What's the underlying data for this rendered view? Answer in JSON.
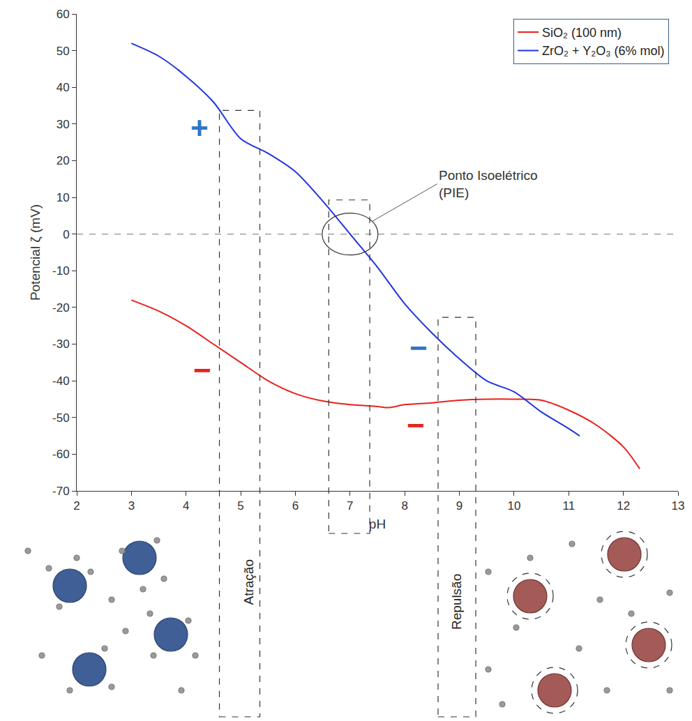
{
  "chart_data": {
    "type": "line",
    "x_label": "pH",
    "y_label": "Potencial ζ (mV)",
    "xlim": [
      2,
      13
    ],
    "xticks": [
      2,
      3,
      4,
      5,
      6,
      7,
      8,
      9,
      10,
      11,
      12,
      13
    ],
    "ylim": [
      -70,
      60
    ],
    "yticks": [
      -70,
      -60,
      -50,
      -40,
      -30,
      -20,
      -10,
      0,
      10,
      20,
      30,
      40,
      50,
      60
    ],
    "grid": false,
    "legend": "upper right",
    "series": [
      {
        "name": "SiO₂ (100 nm)",
        "color": "#e8211d",
        "line_style": "solid",
        "x": [
          3,
          3.5,
          4,
          4.5,
          5,
          5.5,
          6,
          6.5,
          7,
          7.5,
          7.7,
          8,
          8.5,
          9,
          9.5,
          10,
          10.5,
          11,
          11.5,
          12,
          12.3
        ],
        "values": [
          -18,
          -21,
          -25,
          -30,
          -35,
          -40,
          -43.5,
          -45.5,
          -46.5,
          -47,
          -47.3,
          -46.5,
          -46,
          -45.3,
          -45,
          -45,
          -45.3,
          -48,
          -52,
          -58,
          -64
        ]
      },
      {
        "name": "ZrO₂ + Y₂O₃ (6% mol)",
        "color": "#1f35e0",
        "line_style": "solid",
        "x": [
          3,
          3.5,
          4,
          4.5,
          5,
          5.5,
          6,
          6.5,
          7,
          7.5,
          8,
          8.5,
          9,
          9.5,
          10,
          10.5,
          11,
          11.2
        ],
        "values": [
          52,
          48.5,
          43,
          36,
          26,
          22,
          17,
          9,
          0,
          -9,
          -19,
          -27,
          -34,
          -40,
          -43,
          -48.5,
          -53,
          -55
        ]
      }
    ],
    "reference_lines": [
      {
        "y": 0
      }
    ],
    "regions": [
      {
        "label": "Atração",
        "x": [
          4.61,
          5.35
        ],
        "y_top": 33.7
      },
      {
        "label": "Repulsão",
        "x": [
          8.61,
          9.3
        ],
        "y_top": -22.7
      }
    ],
    "isoelectric_point": {
      "label": [
        "Ponto Isoelétrico",
        "(PIE)"
      ],
      "x": 7,
      "y": 0,
      "region_x": [
        6.61,
        7.36
      ],
      "region_y_top": 9.3
    },
    "annotations": [
      {
        "text": "+",
        "x": 4.25,
        "y": 29,
        "color": "#2e75c8"
      },
      {
        "text": "−",
        "x": 4.3,
        "y": -37,
        "color": "#e8211d"
      },
      {
        "text": "−",
        "x": 8.25,
        "y": -31,
        "color": "#2e75c8"
      },
      {
        "text": "−",
        "x": 8.2,
        "y": -52,
        "color": "#e8211d"
      }
    ]
  }
}
